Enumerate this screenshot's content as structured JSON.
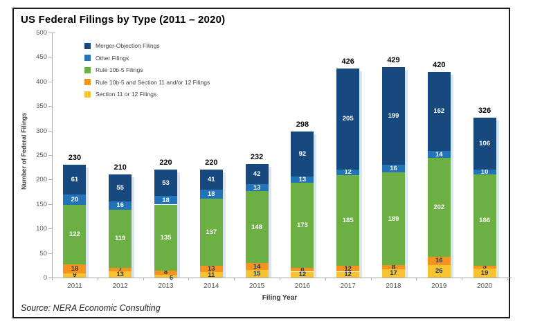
{
  "header": {
    "title": "US Federal Filings by Type (2011 – 2020)"
  },
  "footer": {
    "source": "Source: NERA Economic Consulting"
  },
  "chart_data": {
    "type": "bar",
    "stacked": true,
    "title": "US Federal Filings by Type (2011 – 2020)",
    "xlabel": "Filing Year",
    "ylabel": "Number of Federal Filings",
    "ylim": [
      0,
      500
    ],
    "yticks": [
      0,
      50,
      100,
      150,
      200,
      250,
      300,
      350,
      400,
      450,
      500
    ],
    "grid": false,
    "legend_position": "top-left-inside",
    "categories": [
      "2011",
      "2012",
      "2013",
      "2014",
      "2015",
      "2016",
      "2017",
      "2018",
      "2019",
      "2020"
    ],
    "series": [
      {
        "name": "Section 11 or 12 Filings",
        "color": "#F8C331",
        "label_color": "#17375E",
        "values": [
          9,
          13,
          6,
          11,
          15,
          12,
          12,
          17,
          26,
          19
        ]
      },
      {
        "name": "Rule 10b-5 and Section 11 and/or 12 Filings",
        "color": "#F6921E",
        "label_color": "#17375E",
        "values": [
          18,
          7,
          8,
          13,
          14,
          8,
          12,
          8,
          16,
          5
        ]
      },
      {
        "name": "Rule 10b-5 Filings",
        "color": "#6CB044",
        "label_color": "#FFFFFF",
        "values": [
          122,
          119,
          135,
          137,
          148,
          173,
          185,
          189,
          202,
          186
        ]
      },
      {
        "name": "Other Filings",
        "color": "#2273B8",
        "label_color": "#FFFFFF",
        "values": [
          20,
          16,
          18,
          18,
          13,
          13,
          12,
          16,
          14,
          10
        ]
      },
      {
        "name": "Merger-Objection Filings",
        "color": "#17497E",
        "label_color": "#FFFFFF",
        "values": [
          61,
          55,
          53,
          41,
          42,
          92,
          205,
          199,
          162,
          106
        ]
      }
    ],
    "totals": [
      230,
      210,
      220,
      220,
      232,
      298,
      426,
      429,
      420,
      326
    ],
    "colors": {
      "bar_shadow": "#D9E6F2",
      "axis": "#A8A8A8",
      "axis_text": "#595959"
    }
  }
}
